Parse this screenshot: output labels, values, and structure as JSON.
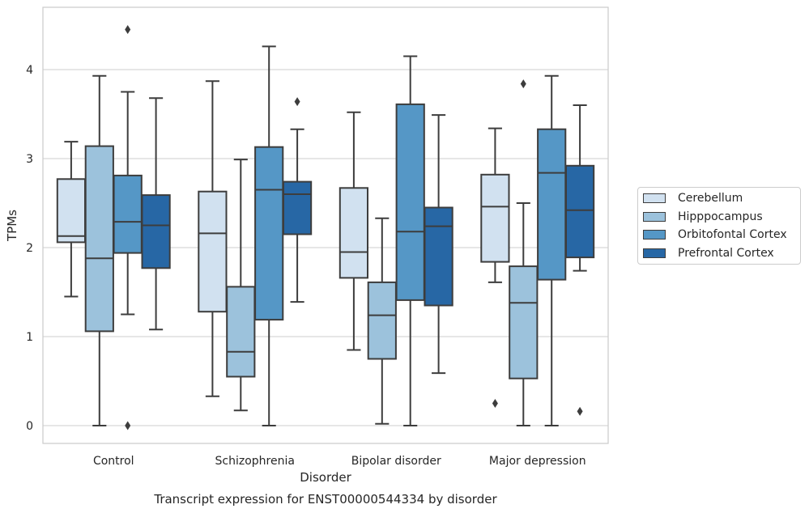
{
  "chart_data": {
    "type": "box",
    "title": "Transcript expression for ENST00000544334 by disorder",
    "xlabel": "Disorder",
    "ylabel": "TPMs",
    "ylim": [
      -0.2,
      4.7
    ],
    "yticks": [
      0,
      1,
      2,
      3,
      4
    ],
    "grid": "horizontal",
    "legend_position": "right",
    "categories": [
      "Control",
      "Schizophrenia",
      "Bipolar disorder",
      "Major depression"
    ],
    "series": [
      {
        "name": "Cerebellum",
        "color": "#d1e1f0",
        "boxes": [
          {
            "whisker_low": 1.45,
            "q1": 2.06,
            "median": 2.13,
            "q3": 2.77,
            "whisker_high": 3.19,
            "outliers": []
          },
          {
            "whisker_low": 0.33,
            "q1": 1.28,
            "median": 2.16,
            "q3": 2.63,
            "whisker_high": 3.87,
            "outliers": []
          },
          {
            "whisker_low": 0.85,
            "q1": 1.66,
            "median": 1.95,
            "q3": 2.67,
            "whisker_high": 3.52,
            "outliers": []
          },
          {
            "whisker_low": 1.61,
            "q1": 1.84,
            "median": 2.46,
            "q3": 2.82,
            "whisker_high": 3.34,
            "outliers": [
              0.25
            ]
          }
        ]
      },
      {
        "name": "Hipppocampus",
        "color": "#9cc2dc",
        "boxes": [
          {
            "whisker_low": 0.0,
            "q1": 1.06,
            "median": 1.88,
            "q3": 3.14,
            "whisker_high": 3.93,
            "outliers": []
          },
          {
            "whisker_low": 0.17,
            "q1": 0.55,
            "median": 0.83,
            "q3": 1.56,
            "whisker_high": 2.99,
            "outliers": []
          },
          {
            "whisker_low": 0.02,
            "q1": 0.75,
            "median": 1.24,
            "q3": 1.61,
            "whisker_high": 2.33,
            "outliers": []
          },
          {
            "whisker_low": 0.0,
            "q1": 0.53,
            "median": 1.38,
            "q3": 1.79,
            "whisker_high": 2.5,
            "outliers": [
              3.84
            ]
          }
        ]
      },
      {
        "name": "Orbitofontal Cortex",
        "color": "#5597c6",
        "boxes": [
          {
            "whisker_low": 1.25,
            "q1": 1.94,
            "median": 2.29,
            "q3": 2.81,
            "whisker_high": 3.75,
            "outliers": [
              4.45,
              0.0
            ]
          },
          {
            "whisker_low": 0.0,
            "q1": 1.19,
            "median": 2.65,
            "q3": 3.13,
            "whisker_high": 4.26,
            "outliers": []
          },
          {
            "whisker_low": 0.0,
            "q1": 1.41,
            "median": 2.18,
            "q3": 3.61,
            "whisker_high": 4.15,
            "outliers": []
          },
          {
            "whisker_low": 0.0,
            "q1": 1.64,
            "median": 2.84,
            "q3": 3.33,
            "whisker_high": 3.93,
            "outliers": []
          }
        ]
      },
      {
        "name": "Prefrontal Cortex",
        "color": "#2767a5",
        "boxes": [
          {
            "whisker_low": 1.08,
            "q1": 1.77,
            "median": 2.25,
            "q3": 2.59,
            "whisker_high": 3.68,
            "outliers": []
          },
          {
            "whisker_low": 1.39,
            "q1": 2.15,
            "median": 2.6,
            "q3": 2.74,
            "whisker_high": 3.33,
            "outliers": [
              3.64
            ]
          },
          {
            "whisker_low": 0.59,
            "q1": 1.35,
            "median": 2.24,
            "q3": 2.45,
            "whisker_high": 3.49,
            "outliers": []
          },
          {
            "whisker_low": 1.74,
            "q1": 1.89,
            "median": 2.42,
            "q3": 2.92,
            "whisker_high": 3.6,
            "outliers": [
              0.16
            ]
          }
        ]
      }
    ]
  }
}
